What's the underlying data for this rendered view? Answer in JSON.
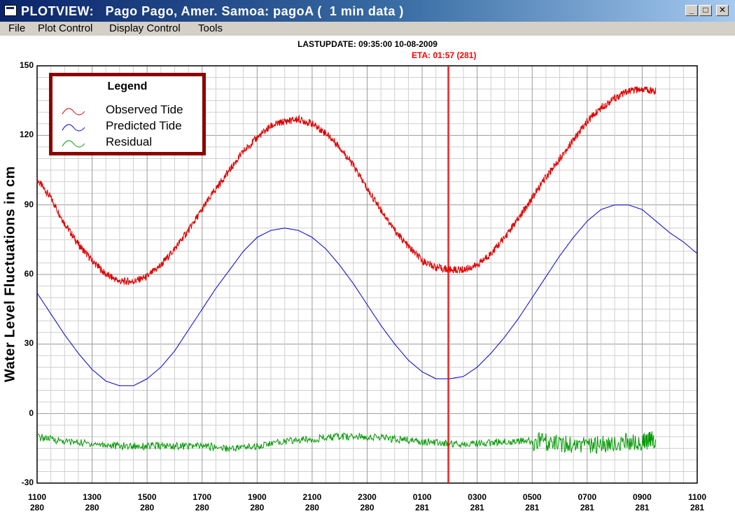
{
  "window": {
    "title": "PLOTVIEW:   Pago Pago, Amer. Samoa: pagoA (  1 min data )",
    "controls": [
      "minimize",
      "maximize",
      "close"
    ]
  },
  "menu": [
    "File",
    "Plot Control",
    "Display Control",
    "Tools"
  ],
  "header": {
    "lastupdate": "LASTUPDATE: 09:35:00  10-08-2009",
    "eta": "ETA: 01:57 (281)"
  },
  "legend": {
    "title": "Legend",
    "items": [
      {
        "label": "Observed Tide",
        "color": "#dd0000"
      },
      {
        "label": "Predicted Tide",
        "color": "#0000cc"
      },
      {
        "label": "Residual",
        "color": "#009900"
      }
    ]
  },
  "chart_data": {
    "type": "line",
    "ylabel": "Water Level Fluctuations in cm",
    "ylim": [
      -30,
      150
    ],
    "yticks": [
      "150",
      "120",
      "90",
      "60",
      "30",
      "0",
      "-30"
    ],
    "xlim_hours": [
      0,
      24
    ],
    "xticks": [
      {
        "time": "1100",
        "day": "280"
      },
      {
        "time": "1300",
        "day": "280"
      },
      {
        "time": "1500",
        "day": "280"
      },
      {
        "time": "1700",
        "day": "280"
      },
      {
        "time": "1900",
        "day": "280"
      },
      {
        "time": "2100",
        "day": "280"
      },
      {
        "time": "2300",
        "day": "280"
      },
      {
        "time": "0100",
        "day": "281"
      },
      {
        "time": "0300",
        "day": "281"
      },
      {
        "time": "0500",
        "day": "281"
      },
      {
        "time": "0700",
        "day": "281"
      },
      {
        "time": "0900",
        "day": "281"
      },
      {
        "time": "1100",
        "day": "281"
      }
    ],
    "eta_marker_hour": 14.95,
    "grid": true,
    "legend_position": "top-left",
    "series": [
      {
        "name": "Observed Tide",
        "color": "#dd0000",
        "x": [
          0,
          0.5,
          1,
          1.5,
          2,
          2.5,
          3,
          3.5,
          4,
          4.5,
          5,
          5.5,
          6,
          6.5,
          7,
          7.5,
          8,
          8.5,
          9,
          9.5,
          10,
          10.5,
          11,
          11.5,
          12,
          12.5,
          13,
          13.5,
          14,
          14.5,
          15,
          15.5,
          16,
          16.5,
          17,
          17.5,
          18,
          18.5,
          19,
          19.5,
          20,
          20.5,
          21,
          21.5,
          22,
          22.5,
          23,
          23.5,
          24
        ],
        "y": [
          101,
          93,
          82,
          73,
          66,
          60,
          57,
          57,
          59,
          64,
          71,
          79,
          88,
          97,
          105,
          113,
          119,
          124,
          126,
          127,
          125,
          121,
          115,
          107,
          97,
          88,
          79,
          72,
          66,
          63,
          62,
          62,
          64,
          69,
          76,
          84,
          93,
          102,
          110,
          118,
          126,
          132,
          136,
          139,
          140,
          139,
          null,
          null,
          null
        ]
      },
      {
        "name": "Predicted Tide",
        "color": "#0000cc",
        "x": [
          0,
          0.5,
          1,
          1.5,
          2,
          2.5,
          3,
          3.5,
          4,
          4.5,
          5,
          5.5,
          6,
          6.5,
          7,
          7.5,
          8,
          8.5,
          9,
          9.5,
          10,
          10.5,
          11,
          11.5,
          12,
          12.5,
          13,
          13.5,
          14,
          14.5,
          15,
          15.5,
          16,
          16.5,
          17,
          17.5,
          18,
          18.5,
          19,
          19.5,
          20,
          20.5,
          21,
          21.5,
          22,
          22.5,
          23,
          23.5,
          24
        ],
        "y": [
          52,
          43,
          34,
          26,
          19,
          14,
          12,
          12,
          15,
          20,
          27,
          36,
          45,
          54,
          62,
          70,
          76,
          79,
          80,
          79,
          76,
          71,
          64,
          56,
          47,
          38,
          30,
          23,
          18,
          15,
          15,
          16,
          20,
          26,
          33,
          41,
          50,
          59,
          68,
          76,
          83,
          88,
          90,
          90,
          88,
          83,
          78,
          74,
          69
        ]
      },
      {
        "name": "Residual",
        "color": "#009900",
        "x": [
          0,
          1,
          2,
          3,
          4,
          5,
          6,
          7,
          8,
          9,
          10,
          11,
          12,
          13,
          14,
          15,
          16,
          17,
          18,
          19,
          20,
          21,
          22,
          22.5,
          23,
          23.5,
          24
        ],
        "y": [
          -10,
          -12,
          -13,
          -14,
          -14,
          -14,
          -14,
          -15,
          -14,
          -12,
          -11,
          -10,
          -10,
          -11,
          -12,
          -13,
          -13,
          -12,
          -12,
          -13,
          -14,
          -13,
          -12,
          -11,
          null,
          null,
          null
        ]
      }
    ]
  }
}
